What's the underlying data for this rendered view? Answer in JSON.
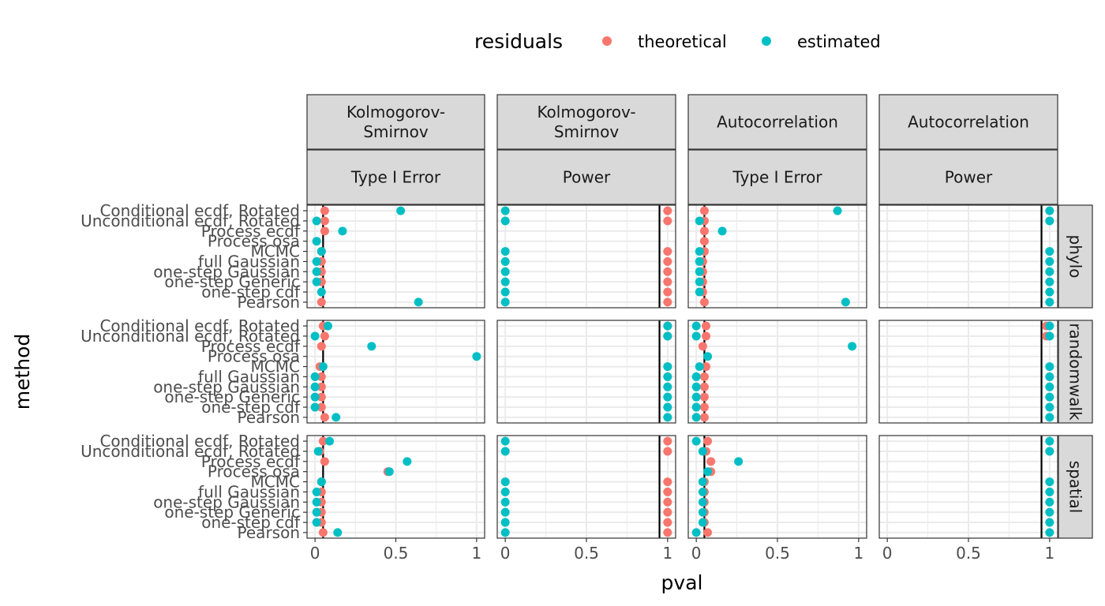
{
  "chart_data": {
    "type": "scatter",
    "xlabel": "pval",
    "ylabel": "method",
    "xlim": [
      0,
      1
    ],
    "x_ticks": [
      "0",
      "0.5",
      "1"
    ],
    "grid": true,
    "legend": {
      "title": "residuals",
      "position": "top",
      "items": [
        {
          "name": "theoretical",
          "color": "#F8766D"
        },
        {
          "name": "estimated",
          "color": "#00BFC4"
        }
      ]
    },
    "methods": [
      "Conditional ecdf, Rotated",
      "Unconditional ecdf, Rotated",
      "Process ecdf",
      "Process osa",
      "MCMC",
      "full Gaussian",
      "one-step Gaussian",
      "one-step Generic",
      "one-step cdf",
      "Pearson"
    ],
    "columns": [
      {
        "test": "Kolmogorov-\nSmirnov",
        "type": "Type I Error",
        "reference": 0.05
      },
      {
        "test": "Kolmogorov-\nSmirnov",
        "type": "Power",
        "reference": 0.95
      },
      {
        "test": "Autocorrelation",
        "type": "Type I Error",
        "reference": 0.05
      },
      {
        "test": "Autocorrelation",
        "type": "Power",
        "reference": 0.95
      }
    ],
    "rows": [
      "phylo",
      "randomwalk",
      "spatial"
    ],
    "panels": [
      [
        {
          "theoretical": [
            0.06,
            0.06,
            0.06,
            null,
            0.04,
            0.04,
            0.04,
            0.04,
            null,
            0.04
          ],
          "estimated": [
            0.53,
            0.01,
            0.17,
            0.01,
            0.04,
            0.01,
            0.01,
            0.01,
            0.04,
            0.64
          ]
        },
        {
          "theoretical": [
            1.0,
            1.0,
            null,
            null,
            1.0,
            1.0,
            1.0,
            1.0,
            1.0,
            1.0
          ],
          "estimated": [
            0.0,
            0.0,
            null,
            null,
            0.0,
            0.0,
            0.0,
            0.0,
            0.0,
            0.0
          ]
        },
        {
          "theoretical": [
            0.05,
            0.05,
            0.05,
            0.05,
            0.05,
            0.04,
            0.04,
            0.04,
            0.04,
            0.05
          ],
          "estimated": [
            0.87,
            0.02,
            0.16,
            null,
            0.02,
            0.02,
            0.02,
            0.02,
            0.02,
            0.92
          ]
        },
        {
          "theoretical": [
            null,
            null,
            null,
            null,
            null,
            null,
            null,
            null,
            null,
            null
          ],
          "estimated": [
            1.0,
            1.0,
            null,
            null,
            1.0,
            1.0,
            1.0,
            1.0,
            1.0,
            1.0
          ]
        }
      ],
      [
        {
          "theoretical": [
            0.05,
            0.06,
            0.04,
            null,
            0.03,
            0.04,
            0.04,
            0.04,
            0.04,
            0.06
          ],
          "estimated": [
            0.08,
            0.0,
            0.35,
            1.0,
            0.05,
            0.0,
            0.0,
            0.0,
            0.0,
            0.13
          ]
        },
        {
          "theoretical": [
            1.0,
            1.0,
            null,
            null,
            null,
            null,
            null,
            null,
            null,
            null
          ],
          "estimated": [
            1.0,
            1.0,
            null,
            null,
            1.0,
            1.0,
            1.0,
            1.0,
            1.0,
            1.0
          ]
        },
        {
          "theoretical": [
            0.06,
            0.06,
            0.04,
            null,
            0.06,
            0.05,
            0.05,
            0.05,
            0.05,
            0.05
          ],
          "estimated": [
            0.0,
            0.0,
            0.96,
            0.07,
            0.02,
            0.0,
            0.0,
            0.0,
            0.0,
            0.0
          ]
        },
        {
          "theoretical": [
            0.98,
            0.98,
            null,
            null,
            null,
            null,
            null,
            null,
            null,
            null
          ],
          "estimated": [
            1.0,
            1.0,
            null,
            null,
            1.0,
            1.0,
            1.0,
            1.0,
            1.0,
            1.0
          ]
        }
      ],
      [
        {
          "theoretical": [
            0.05,
            0.03,
            0.06,
            0.45,
            0.04,
            0.04,
            0.04,
            0.04,
            0.04,
            0.05
          ],
          "estimated": [
            0.09,
            0.02,
            0.57,
            0.46,
            0.04,
            0.01,
            0.01,
            0.01,
            0.01,
            0.14
          ]
        },
        {
          "theoretical": [
            1.0,
            1.0,
            null,
            null,
            1.0,
            1.0,
            1.0,
            1.0,
            1.0,
            1.0
          ],
          "estimated": [
            0.0,
            0.0,
            null,
            null,
            0.0,
            0.0,
            0.0,
            0.0,
            0.0,
            0.0
          ]
        },
        {
          "theoretical": [
            0.07,
            0.06,
            0.09,
            0.09,
            0.05,
            0.05,
            0.05,
            0.05,
            0.05,
            0.07
          ],
          "estimated": [
            0.0,
            0.04,
            0.26,
            0.07,
            0.04,
            0.04,
            0.04,
            0.04,
            0.04,
            0.0
          ]
        },
        {
          "theoretical": [
            null,
            null,
            null,
            null,
            null,
            null,
            null,
            null,
            null,
            null
          ],
          "estimated": [
            1.0,
            1.0,
            null,
            null,
            1.0,
            1.0,
            1.0,
            1.0,
            1.0,
            1.0
          ]
        }
      ]
    ]
  }
}
